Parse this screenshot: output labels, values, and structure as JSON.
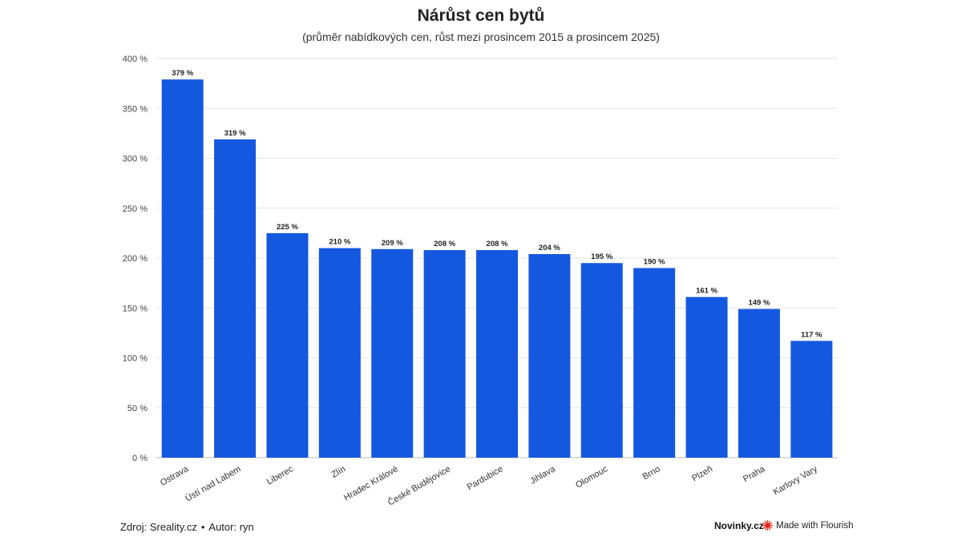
{
  "chart_data": {
    "type": "bar",
    "title": "Nárůst cen bytů",
    "subtitle": "(průměr nabídkových cen, růst mezi prosincem 2015 a prosincem 2025)",
    "categories": [
      "Ostrava",
      "Ústí nad Labem",
      "Liberec",
      "Zlín",
      "Hradec Králové",
      "České Budějovice",
      "Pardubice",
      "Jihlava",
      "Olomouc",
      "Brno",
      "Plzeň",
      "Praha",
      "Karlovy Vary"
    ],
    "values": [
      379,
      319,
      225,
      210,
      209,
      208,
      208,
      204,
      195,
      190,
      161,
      149,
      117
    ],
    "value_labels": [
      "379 %",
      "319 %",
      "225 %",
      "210 %",
      "209 %",
      "208 %",
      "208 %",
      "204 %",
      "195 %",
      "190 %",
      "161 %",
      "149 %",
      "117 %"
    ],
    "ylim": [
      0,
      400
    ],
    "yticks": [
      0,
      50,
      100,
      150,
      200,
      250,
      300,
      350,
      400
    ],
    "ytick_labels": [
      "0 %",
      "50 %",
      "100 %",
      "150 %",
      "200 %",
      "250 %",
      "300 %",
      "350 %",
      "400 %"
    ],
    "xlabel": "",
    "ylabel": "",
    "grid": true,
    "bar_color": "#1558e0",
    "grid_color": "#e6e6e6"
  },
  "footer": {
    "source": "Zdroj: Sreality.cz",
    "separator": "•",
    "author": "Autor: ryn",
    "brand": "Novinky.cz",
    "made_with": "Made with Flourish",
    "flourish_color": "#e0261b"
  }
}
